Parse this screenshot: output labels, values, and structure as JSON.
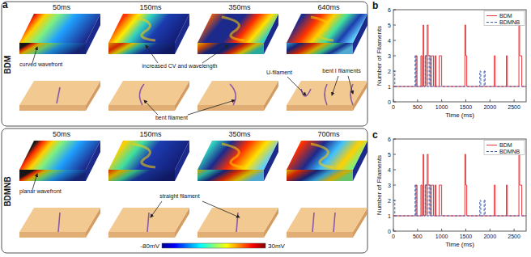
{
  "panel_a": {
    "label": "a",
    "rows": [
      {
        "name": "BDM",
        "times": [
          "50ms",
          "150ms",
          "350ms",
          "640ms"
        ],
        "annotations": [
          "curved wavefront",
          "increased CV and wavelength",
          "bent filament",
          "U-filament",
          "bent I filaments"
        ]
      },
      {
        "name": "BDMNB",
        "times": [
          "50ms",
          "150ms",
          "350ms",
          "700ms"
        ],
        "annotations": [
          "planar wavefront",
          "straight filament"
        ]
      }
    ],
    "colorbar": {
      "min_label": "-80mV",
      "max_label": "30mV"
    }
  },
  "chart_data": [
    {
      "type": "step",
      "title": "b",
      "x_label": "Time (ms)",
      "y_label": "Number of Filaments",
      "xlim": [
        0,
        2750
      ],
      "ylim": [
        0,
        6
      ],
      "xticks": [
        0,
        500,
        1000,
        1500,
        2000,
        2500
      ],
      "yticks": [
        0,
        1,
        2,
        3,
        4,
        5,
        6
      ],
      "legend": "upper right",
      "series": [
        {
          "name": "BDM",
          "color": "#e8383d",
          "line_style": "solid",
          "x": [
            0,
            470,
            490,
            570,
            590,
            615,
            630,
            660,
            690,
            700,
            720,
            760,
            790,
            830,
            860,
            880,
            950,
            1000,
            1480,
            1500,
            1520,
            2090,
            2110,
            2340,
            2360,
            2600,
            2615,
            2660,
            2750
          ],
          "values": [
            1,
            3,
            1,
            3,
            1,
            5,
            1,
            3,
            1,
            5,
            3,
            1,
            3,
            1,
            3,
            1,
            3,
            1,
            5,
            3,
            1,
            3,
            1,
            3,
            1,
            5,
            3,
            1,
            1
          ]
        },
        {
          "name": "BDMNB",
          "color": "#3a5fb0",
          "line_style": "dashed",
          "x": [
            0,
            30,
            450,
            470,
            660,
            700,
            740,
            770,
            1790,
            1810,
            1880,
            1900,
            2750
          ],
          "values": [
            2,
            1,
            3,
            1,
            3,
            1,
            3,
            1,
            2,
            1,
            2,
            1,
            1
          ]
        }
      ]
    },
    {
      "type": "step",
      "title": "c",
      "x_label": "Time (ms)",
      "y_label": "Number of Filaments",
      "xlim": [
        0,
        2750
      ],
      "ylim": [
        0,
        6
      ],
      "xticks": [
        0,
        500,
        1000,
        1500,
        2000,
        2500
      ],
      "yticks": [
        0,
        1,
        2,
        3,
        4,
        5,
        6
      ],
      "legend": "upper right",
      "series": [
        {
          "name": "BDM",
          "color": "#e8383d",
          "line_style": "solid",
          "x": [
            0,
            470,
            490,
            570,
            590,
            615,
            630,
            660,
            690,
            700,
            720,
            760,
            790,
            830,
            860,
            880,
            950,
            1000,
            1480,
            1500,
            1520,
            2090,
            2110,
            2340,
            2360,
            2600,
            2615,
            2660,
            2750
          ],
          "values": [
            1,
            3,
            1,
            3,
            1,
            5,
            1,
            3,
            1,
            5,
            3,
            1,
            3,
            1,
            3,
            1,
            3,
            1,
            5,
            3,
            1,
            3,
            1,
            3,
            1,
            5,
            3,
            1,
            1
          ]
        },
        {
          "name": "BDMNB",
          "color": "#3a5fb0",
          "line_style": "dashed",
          "x": [
            0,
            30,
            450,
            470,
            660,
            700,
            740,
            770,
            1790,
            1810,
            1880,
            1900,
            2750
          ],
          "values": [
            2,
            1,
            3,
            1,
            3,
            1,
            3,
            1,
            2,
            1,
            2,
            1,
            1
          ]
        }
      ]
    }
  ]
}
